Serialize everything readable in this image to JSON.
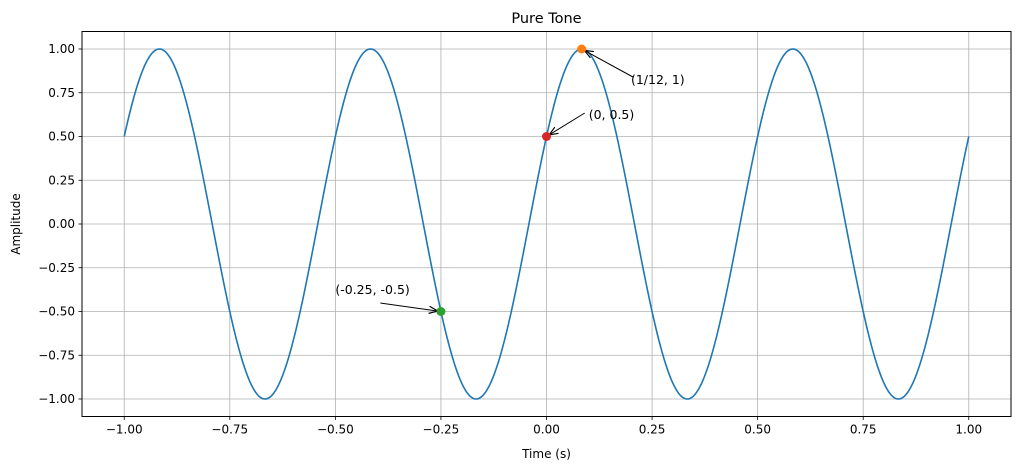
{
  "chart_data": {
    "type": "line",
    "title": "Pure Tone",
    "xlabel": "Time (s)",
    "ylabel": "Amplitude",
    "xlim": [
      -1.1,
      1.1
    ],
    "ylim": [
      -1.1,
      1.1
    ],
    "grid": true,
    "xticks": [
      "−1.00",
      "−0.75",
      "−0.50",
      "−0.25",
      "0.00",
      "0.25",
      "0.50",
      "0.75",
      "1.00"
    ],
    "xtick_values": [
      -1,
      -0.75,
      -0.5,
      -0.25,
      0,
      0.25,
      0.5,
      0.75,
      1
    ],
    "yticks": [
      "−1.00",
      "−0.75",
      "−0.50",
      "−0.25",
      "0.00",
      "0.25",
      "0.50",
      "0.75",
      "1.00"
    ],
    "ytick_values": [
      -1,
      -0.75,
      -0.5,
      -0.25,
      0,
      0.25,
      0.5,
      0.75,
      1
    ],
    "series": [
      {
        "function": "sin(2*pi*2*t + pi/6)",
        "frequency_hz": 2,
        "phase_rad": 0.5236,
        "amplitude": 1,
        "t_range": [
          -1,
          1
        ],
        "color": "#1f77b4"
      }
    ],
    "points": [
      {
        "x": 0.0833,
        "y": 1,
        "color": "#ff7f0e",
        "label": "(1/12, 1)",
        "text_at": [
          0.2,
          0.8
        ]
      },
      {
        "x": 0,
        "y": 0.5,
        "color": "#d62728",
        "label": "(0, 0.5)",
        "text_at": [
          0.1,
          0.6
        ]
      },
      {
        "x": -0.25,
        "y": -0.5,
        "color": "#2ca02c",
        "label": "(-0.25, -0.5)",
        "text_at": [
          -0.5,
          -0.4
        ]
      }
    ]
  }
}
